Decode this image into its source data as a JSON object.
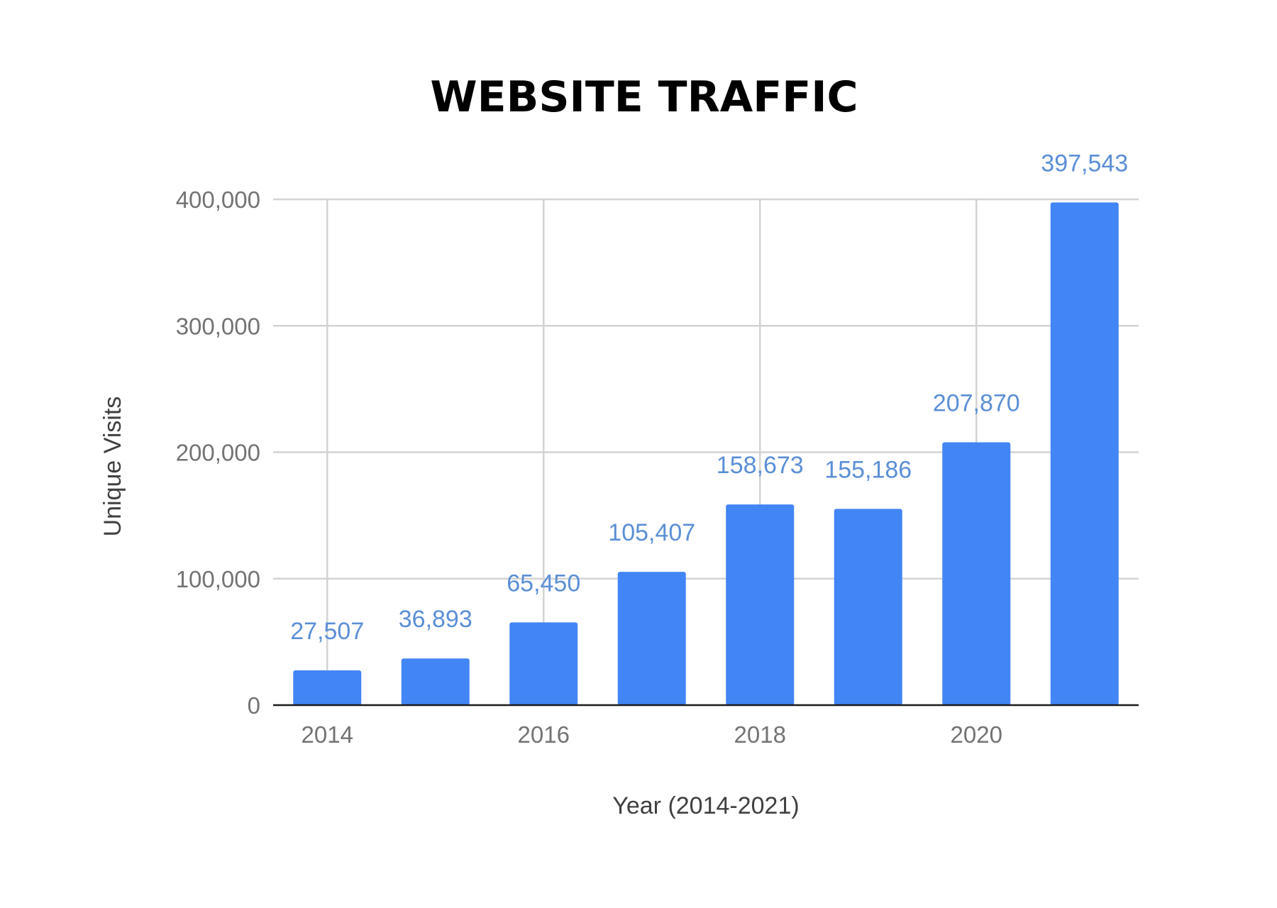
{
  "chart_data": {
    "type": "bar",
    "title": "WEBSITE TRAFFIC",
    "xlabel": "Year (2014-2021)",
    "ylabel": "Unique Visits",
    "categories": [
      "2014",
      "2015",
      "2016",
      "2017",
      "2018",
      "2019",
      "2020",
      "2021"
    ],
    "values": [
      27507,
      36893,
      65450,
      105407,
      158673,
      155186,
      207870,
      397543
    ],
    "data_labels": [
      "27,507",
      "36,893",
      "65,450",
      "105,407",
      "158,673",
      "155,186",
      "207,870",
      "397,543"
    ],
    "x_tick_labels": [
      {
        "category": "2014",
        "label": "2014"
      },
      {
        "category": "2016",
        "label": "2016"
      },
      {
        "category": "2018",
        "label": "2018"
      },
      {
        "category": "2020",
        "label": "2020"
      }
    ],
    "y_ticks": [
      0,
      100000,
      200000,
      300000,
      400000
    ],
    "y_tick_labels": [
      "0",
      "100,000",
      "200,000",
      "300,000",
      "400,000"
    ],
    "ylim": [
      0,
      400000
    ],
    "grid": true,
    "legend": "none",
    "colors": {
      "bar": "#4285f4",
      "data_label": "#5b8fd6",
      "gridline": "#d3d3d3",
      "tick_label": "#737373",
      "axis_title": "#404040",
      "title": "#000000"
    }
  }
}
